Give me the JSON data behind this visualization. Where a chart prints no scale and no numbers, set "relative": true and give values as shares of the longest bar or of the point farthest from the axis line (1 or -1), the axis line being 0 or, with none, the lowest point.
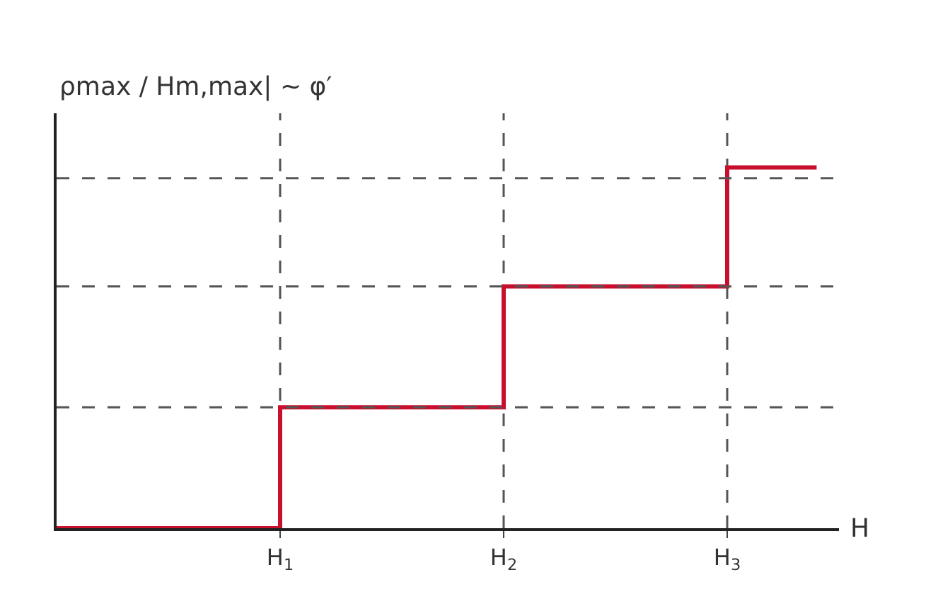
{
  "chart_data": {
    "type": "step",
    "relative": true,
    "ylabel": "ρmax / Hm,max| ~ φ′",
    "xlabel": "H",
    "x": [
      0,
      1,
      2,
      3,
      3.4
    ],
    "xlim": [
      0,
      3.5
    ],
    "xticks": [
      {
        "value": 1,
        "label": "H$_{1}$"
      },
      {
        "value": 2,
        "label": "H$_{2}$"
      },
      {
        "value": 3,
        "label": "H$_{3}$"
      }
    ],
    "series": [
      {
        "color": "#c8102e",
        "values": [
          0,
          0.335,
          0.67,
          1,
          1
        ]
      }
    ],
    "ref_lines": [
      {
        "axis": "y",
        "value": 0.335,
        "line_style": "dashed",
        "color": "#555555"
      },
      {
        "axis": "y",
        "value": 0.67,
        "line_style": "dashed",
        "color": "#555555"
      },
      {
        "axis": "y",
        "value": 0.97,
        "line_style": "dashed",
        "color": "#555555"
      },
      {
        "axis": "x",
        "value": 1,
        "line_style": "dashed",
        "color": "#555555"
      },
      {
        "axis": "x",
        "value": 2,
        "line_style": "dashed",
        "color": "#555555"
      },
      {
        "axis": "x",
        "value": 3,
        "line_style": "dashed",
        "color": "#555555"
      }
    ],
    "grid": false
  }
}
